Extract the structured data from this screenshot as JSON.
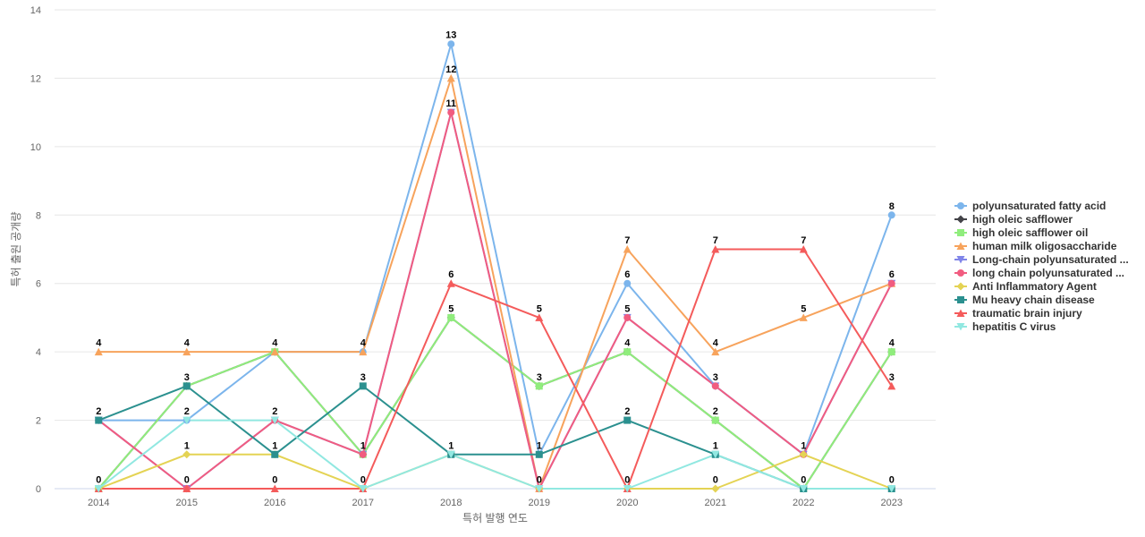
{
  "chart_data": {
    "type": "line",
    "title": "",
    "xlabel": "특허 발행 연도",
    "ylabel": "특허 출원 공개량",
    "x": [
      "2014",
      "2015",
      "2016",
      "2017",
      "2018",
      "2019",
      "2020",
      "2021",
      "2022",
      "2023"
    ],
    "ylim": [
      0,
      14
    ],
    "yticks": [
      0,
      2,
      4,
      6,
      8,
      10,
      12,
      14
    ],
    "grid": true,
    "legend_position": "right",
    "series": [
      {
        "name": "polyunsaturated fatty acid",
        "color": "#7cb5ec",
        "marker": "circle",
        "values": [
          2,
          2,
          4,
          4,
          13,
          1,
          6,
          3,
          1,
          8
        ]
      },
      {
        "name": "high oleic safflower",
        "color": "#434348",
        "marker": "diamond",
        "values": [
          0,
          3,
          4,
          1,
          5,
          3,
          4,
          2,
          0,
          4
        ]
      },
      {
        "name": "high oleic safflower oil",
        "color": "#90ed7d",
        "marker": "square",
        "values": [
          0,
          3,
          4,
          1,
          5,
          3,
          4,
          2,
          0,
          4
        ]
      },
      {
        "name": "human milk oligosaccharide",
        "color": "#f7a35c",
        "marker": "triangle",
        "values": [
          4,
          4,
          4,
          4,
          12,
          0,
          7,
          4,
          5,
          6
        ]
      },
      {
        "name": "Long-chain polyunsaturated ...",
        "color": "#8085e9",
        "marker": "triangle-down",
        "values": [
          2,
          0,
          2,
          1,
          11,
          0,
          5,
          3,
          1,
          6
        ]
      },
      {
        "name": "long chain polyunsaturated ...",
        "color": "#f15c80",
        "marker": "circle",
        "values": [
          2,
          0,
          2,
          1,
          11,
          0,
          5,
          3,
          1,
          6
        ]
      },
      {
        "name": "Anti Inflammatory Agent",
        "color": "#e4d354",
        "marker": "diamond",
        "values": [
          0,
          1,
          1,
          0,
          1,
          0,
          0,
          0,
          1,
          0
        ]
      },
      {
        "name": "Mu heavy chain disease",
        "color": "#2b908f",
        "marker": "square",
        "values": [
          2,
          3,
          1,
          3,
          1,
          1,
          2,
          1,
          0,
          0
        ]
      },
      {
        "name": "traumatic brain injury",
        "color": "#f45b5b",
        "marker": "triangle",
        "values": [
          0,
          0,
          0,
          0,
          6,
          5,
          0,
          7,
          7,
          3
        ]
      },
      {
        "name": "hepatitis C virus",
        "color": "#91e8e1",
        "marker": "triangle-down",
        "values": [
          0,
          2,
          2,
          0,
          1,
          0,
          0,
          1,
          0,
          0
        ]
      }
    ],
    "annotations": [
      {
        "x": "2014",
        "label": "4",
        "value": 4
      },
      {
        "x": "2014",
        "label": "2",
        "value": 2
      },
      {
        "x": "2014",
        "label": "0",
        "value": 0
      },
      {
        "x": "2015",
        "label": "4",
        "value": 4
      },
      {
        "x": "2015",
        "label": "3",
        "value": 3
      },
      {
        "x": "2015",
        "label": "2",
        "value": 2
      },
      {
        "x": "2015",
        "label": "1",
        "value": 1
      },
      {
        "x": "2015",
        "label": "0",
        "value": 0
      },
      {
        "x": "2016",
        "label": "4",
        "value": 4
      },
      {
        "x": "2016",
        "label": "2",
        "value": 2
      },
      {
        "x": "2016",
        "label": "1",
        "value": 1
      },
      {
        "x": "2016",
        "label": "0",
        "value": 0
      },
      {
        "x": "2017",
        "label": "4",
        "value": 4
      },
      {
        "x": "2017",
        "label": "3",
        "value": 3
      },
      {
        "x": "2017",
        "label": "1",
        "value": 1
      },
      {
        "x": "2017",
        "label": "0",
        "value": 0
      },
      {
        "x": "2018",
        "label": "13",
        "value": 13
      },
      {
        "x": "2018",
        "label": "12",
        "value": 12
      },
      {
        "x": "2018",
        "label": "11",
        "value": 11
      },
      {
        "x": "2018",
        "label": "6",
        "value": 6
      },
      {
        "x": "2018",
        "label": "5",
        "value": 5
      },
      {
        "x": "2018",
        "label": "1",
        "value": 1
      },
      {
        "x": "2019",
        "label": "5",
        "value": 5
      },
      {
        "x": "2019",
        "label": "3",
        "value": 3
      },
      {
        "x": "2019",
        "label": "1",
        "value": 1
      },
      {
        "x": "2019",
        "label": "0",
        "value": 0
      },
      {
        "x": "2020",
        "label": "7",
        "value": 7
      },
      {
        "x": "2020",
        "label": "6",
        "value": 6
      },
      {
        "x": "2020",
        "label": "5",
        "value": 5
      },
      {
        "x": "2020",
        "label": "4",
        "value": 4
      },
      {
        "x": "2020",
        "label": "2",
        "value": 2
      },
      {
        "x": "2020",
        "label": "0",
        "value": 0
      },
      {
        "x": "2021",
        "label": "7",
        "value": 7
      },
      {
        "x": "2021",
        "label": "4",
        "value": 4
      },
      {
        "x": "2021",
        "label": "3",
        "value": 3
      },
      {
        "x": "2021",
        "label": "2",
        "value": 2
      },
      {
        "x": "2021",
        "label": "1",
        "value": 1
      },
      {
        "x": "2021",
        "label": "0",
        "value": 0
      },
      {
        "x": "2022",
        "label": "7",
        "value": 7
      },
      {
        "x": "2022",
        "label": "5",
        "value": 5
      },
      {
        "x": "2022",
        "label": "1",
        "value": 1
      },
      {
        "x": "2022",
        "label": "0",
        "value": 0
      },
      {
        "x": "2023",
        "label": "8",
        "value": 8
      },
      {
        "x": "2023",
        "label": "6",
        "value": 6
      },
      {
        "x": "2023",
        "label": "4",
        "value": 4
      },
      {
        "x": "2023",
        "label": "3",
        "value": 3
      },
      {
        "x": "2023",
        "label": "0",
        "value": 0
      }
    ]
  }
}
